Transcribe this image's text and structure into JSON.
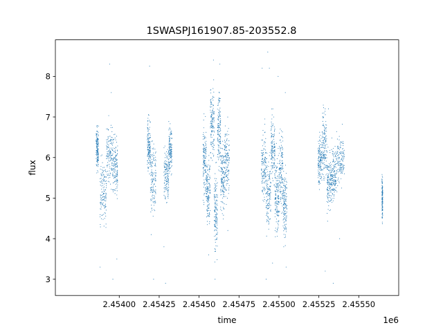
{
  "chart_data": {
    "type": "scatter",
    "title": "1SWASPJ161907.85-203552.8",
    "xlabel": "time",
    "ylabel": "flux",
    "x_offset_label": "1e6",
    "xlim": [
      2.4536,
      2.45575
    ],
    "ylim": [
      2.6,
      8.9
    ],
    "x_ticks": [
      2.454,
      2.45425,
      2.4545,
      2.45475,
      2.455,
      2.45525,
      2.4555
    ],
    "x_tick_labels": [
      "2.45400",
      "2.45425",
      "2.45450",
      "2.45475",
      "2.45500",
      "2.45525",
      "2.45550"
    ],
    "y_ticks": [
      3,
      4,
      5,
      6,
      7,
      8
    ],
    "y_tick_labels": [
      "3",
      "4",
      "5",
      "6",
      "7",
      "8"
    ],
    "grid": false,
    "marker_color": "#1f77b4",
    "series": [
      {
        "clusters": [
          {
            "x_range": [
              2.453855,
              2.45387
            ],
            "center": 6.2,
            "spread": 0.25
          },
          {
            "x_range": [
              2.45388,
              2.45392
            ],
            "center": 5.2,
            "spread": 0.4
          },
          {
            "x_range": [
              2.45392,
              2.45396
            ],
            "center": 6.1,
            "spread": 0.35
          },
          {
            "x_range": [
              2.45396,
              2.45399
            ],
            "center": 5.7,
            "spread": 0.35
          },
          {
            "x_range": [
              2.454175,
              2.454195
            ],
            "center": 6.3,
            "spread": 0.3
          },
          {
            "x_range": [
              2.454195,
              2.45423
            ],
            "center": 5.5,
            "spread": 0.4
          },
          {
            "x_range": [
              2.45428,
              2.45431
            ],
            "center": 5.6,
            "spread": 0.35
          },
          {
            "x_range": [
              2.45431,
              2.45433
            ],
            "center": 6.2,
            "spread": 0.3
          },
          {
            "x_range": [
              2.454525,
              2.454545
            ],
            "center": 5.9,
            "spread": 0.4
          },
          {
            "x_range": [
              2.454545,
              2.45457
            ],
            "center": 5.2,
            "spread": 0.35
          },
          {
            "x_range": [
              2.45457,
              2.454595
            ],
            "center": 6.8,
            "spread": 0.45
          },
          {
            "x_range": [
              2.454595,
              2.454615
            ],
            "center": 4.6,
            "spread": 0.45
          },
          {
            "x_range": [
              2.454615,
              2.454635
            ],
            "center": 6.7,
            "spread": 0.45
          },
          {
            "x_range": [
              2.454635,
              2.45466
            ],
            "center": 5.5,
            "spread": 0.4
          },
          {
            "x_range": [
              2.45466,
              2.45469
            ],
            "center": 5.9,
            "spread": 0.4
          },
          {
            "x_range": [
              2.45489,
              2.45492
            ],
            "center": 5.8,
            "spread": 0.4
          },
          {
            "x_range": [
              2.45492,
              2.45495
            ],
            "center": 5.1,
            "spread": 0.45
          },
          {
            "x_range": [
              2.45495,
              2.454975
            ],
            "center": 6.2,
            "spread": 0.4
          },
          {
            "x_range": [
              2.454975,
              2.455
            ],
            "center": 5.0,
            "spread": 0.45
          },
          {
            "x_range": [
              2.455,
              2.455025
            ],
            "center": 5.7,
            "spread": 0.45
          },
          {
            "x_range": [
              2.455025,
              2.45505
            ],
            "center": 4.9,
            "spread": 0.4
          },
          {
            "x_range": [
              2.455245,
              2.45527
            ],
            "center": 5.9,
            "spread": 0.3
          },
          {
            "x_range": [
              2.45527,
              2.4553
            ],
            "center": 6.3,
            "spread": 0.4
          },
          {
            "x_range": [
              2.4553,
              2.45533
            ],
            "center": 5.4,
            "spread": 0.35
          },
          {
            "x_range": [
              2.45533,
              2.45536
            ],
            "center": 5.6,
            "spread": 0.3
          },
          {
            "x_range": [
              2.45536,
              2.45541
            ],
            "center": 5.9,
            "spread": 0.3
          },
          {
            "x_range": [
              2.455645,
              2.45565
            ],
            "center": 5.0,
            "spread": 0.25
          }
        ],
        "outliers": [
          [
            2.45388,
            3.3
          ],
          [
            2.45394,
            8.3
          ],
          [
            2.45395,
            7.6
          ],
          [
            2.45396,
            3.0
          ],
          [
            2.453985,
            3.5
          ],
          [
            2.45419,
            8.25
          ],
          [
            2.4542,
            4.1
          ],
          [
            2.454215,
            3.0
          ],
          [
            2.45429,
            2.9
          ],
          [
            2.45428,
            3.8
          ],
          [
            2.45459,
            8.4
          ],
          [
            2.4546,
            3.0
          ],
          [
            2.45463,
            8.3
          ],
          [
            2.45456,
            3.6
          ],
          [
            2.45468,
            4.2
          ],
          [
            2.454895,
            8.2
          ],
          [
            2.45493,
            8.6
          ],
          [
            2.45494,
            8.2
          ],
          [
            2.45492,
            3.0
          ],
          [
            2.45496,
            3.4
          ],
          [
            2.454995,
            8.0
          ],
          [
            2.45504,
            7.6
          ],
          [
            2.45503,
            3.8
          ],
          [
            2.455045,
            3.3
          ],
          [
            2.45529,
            7.2
          ],
          [
            2.45529,
            3.2
          ],
          [
            2.45534,
            2.9
          ],
          [
            2.45531,
            7.2
          ],
          [
            2.45538,
            4.0
          ]
        ]
      }
    ]
  }
}
